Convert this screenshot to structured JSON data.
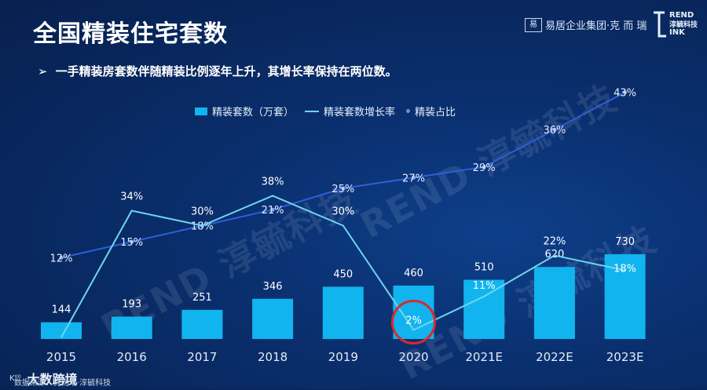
{
  "title": "全国精装住宅套数",
  "subtitle": "一手精装房套数伴随精装比例逐年上升，其增长率保持在两位数。",
  "subtitle_arrow": "➢",
  "brand": {
    "box_text": "易",
    "text": "易居企业集团·克 而 瑞",
    "logo_line1": "REND",
    "logo_line2": "淳毓科技",
    "logo_line3": "INK"
  },
  "watermark": {
    "text": "REND 淳毓科技"
  },
  "footer": {
    "brand": "大数跨境",
    "source": "数据来源：克而瑞·淳毓科技"
  },
  "colors": {
    "bar": "#11b4ee",
    "growth_line": "#6fd6ee",
    "ratio_line": "#2f5fd6",
    "highlight_circle": "#d92a2a"
  },
  "chart_data": {
    "type": "bar",
    "categories": [
      "2015",
      "2016",
      "2017",
      "2018",
      "2019",
      "2020",
      "2021E",
      "2022E",
      "2023E"
    ],
    "legend_position": "top",
    "series": [
      {
        "name": "精装套数（万套）",
        "type": "bar",
        "values": [
          144,
          193,
          251,
          346,
          450,
          460,
          510,
          620,
          730
        ],
        "labels": [
          "144",
          "193",
          "251",
          "346",
          "450",
          "460",
          "510",
          "620",
          "730"
        ]
      },
      {
        "name": "精装套数增长率",
        "type": "line",
        "values": [
          null,
          34,
          30,
          38,
          30,
          2,
          11,
          22,
          18
        ],
        "labels": [
          "",
          "34%",
          "30%",
          "38%",
          "30%",
          "2%",
          "11%",
          "22%",
          "18%"
        ]
      },
      {
        "name": "精装占比",
        "type": "line",
        "values": [
          12,
          15,
          18,
          21,
          25,
          27,
          29,
          36,
          43
        ],
        "labels": [
          "12%",
          "15%",
          "18%",
          "21%",
          "25%",
          "27%",
          "29%",
          "36%",
          "43%"
        ]
      }
    ],
    "highlight": {
      "category": "2020",
      "series": "精装套数增长率"
    }
  }
}
